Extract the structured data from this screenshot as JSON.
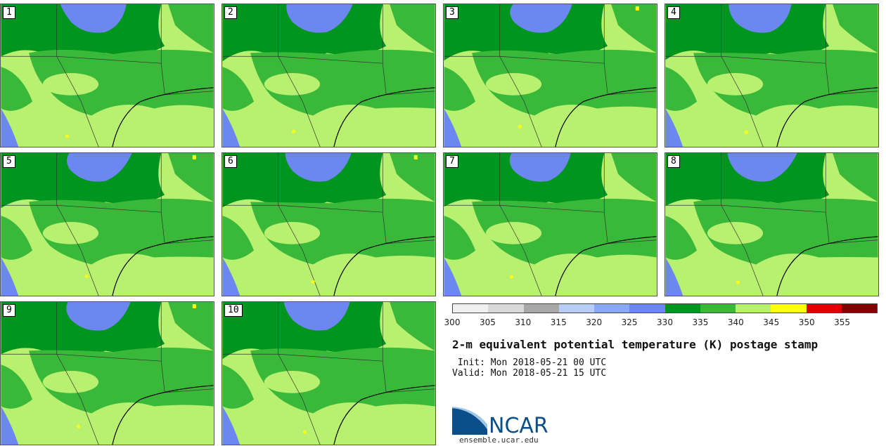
{
  "panels": [
    {
      "label": "1"
    },
    {
      "label": "2"
    },
    {
      "label": "3"
    },
    {
      "label": "4"
    },
    {
      "label": "5"
    },
    {
      "label": "6"
    },
    {
      "label": "7"
    },
    {
      "label": "8"
    },
    {
      "label": "9"
    },
    {
      "label": "10"
    }
  ],
  "colorbar": {
    "colors": [
      "#f0f0f0",
      "#d9d9d9",
      "#a8a8a8",
      "#b8ccf8",
      "#8aa8f8",
      "#6c88f0",
      "#00951f",
      "#3ab83a",
      "#b8f070",
      "#ffff10",
      "#e00000",
      "#800000"
    ],
    "ticks": [
      "300",
      "305",
      "310",
      "315",
      "320",
      "325",
      "330",
      "335",
      "340",
      "345",
      "350",
      "355"
    ]
  },
  "title": "2-m equivalent potential temperature (K) postage stamp",
  "init": " Init: Mon 2018-05-21 00 UTC",
  "valid": "Valid: Mon 2018-05-21 15 UTC",
  "logo": {
    "text": "NCAR",
    "colors": {
      "primary": "#0b4f8a",
      "light": "#4a90c8"
    }
  },
  "url": "ensemble.ucar.edu"
}
